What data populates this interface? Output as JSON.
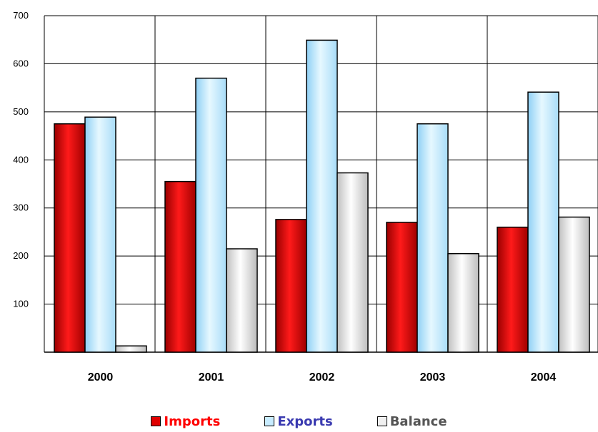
{
  "chart_data": {
    "type": "bar",
    "categories": [
      "2000",
      "2001",
      "2002",
      "2003",
      "2004"
    ],
    "series": [
      {
        "name": "Imports",
        "values": [
          475,
          355,
          276,
          270,
          260
        ]
      },
      {
        "name": "Exports",
        "values": [
          489,
          570,
          649,
          475,
          541
        ]
      },
      {
        "name": "Balance",
        "values": [
          13,
          215,
          373,
          205,
          281
        ]
      }
    ],
    "ylim": [
      0,
      700
    ],
    "yticks": [
      "100",
      "200",
      "300",
      "400",
      "500",
      "600",
      "700"
    ],
    "grid": true,
    "legend_position": "bottom"
  },
  "colors": {
    "Imports": "#e00000",
    "Exports": "#c8ecff",
    "Balance": "#f0f0f0",
    "Imports_label": "#ff0000",
    "Exports_label": "#3a3ab0",
    "Balance_label": "#555555"
  }
}
